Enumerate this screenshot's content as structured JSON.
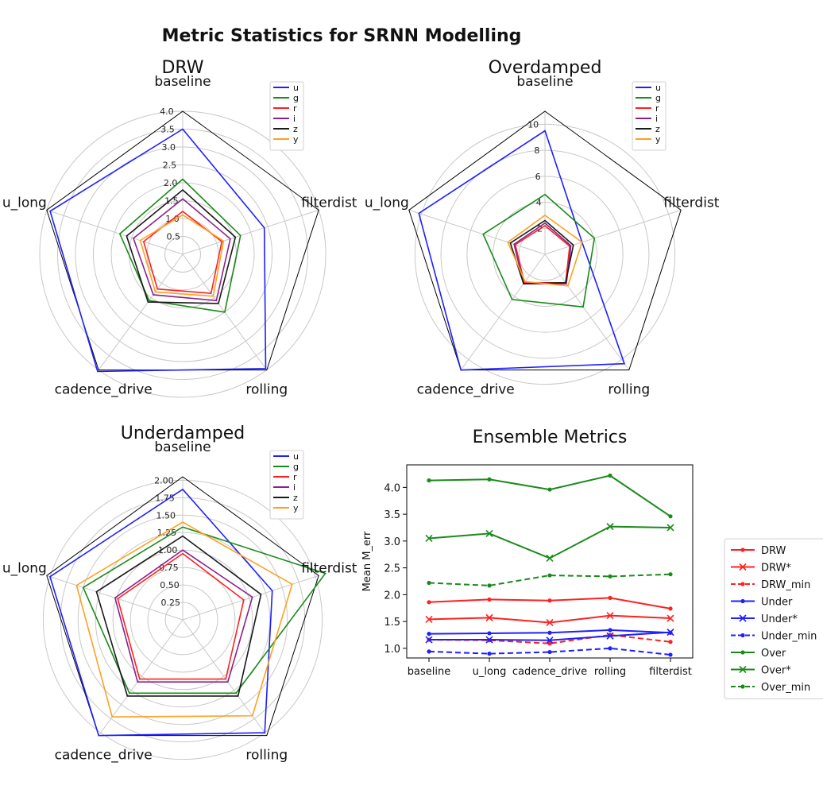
{
  "figure_title": "Metric Statistics for SRNN Modelling",
  "colors": {
    "u": "#1f1fff",
    "g": "#1a8a1a",
    "r": "#ff2020",
    "i": "#8b228b",
    "z": "#1a1a1a",
    "y": "#ffa020",
    "grid": "#c8c8c8",
    "frame": "#000000"
  },
  "chart_data": [
    {
      "type": "radar",
      "title": "DRW",
      "axes": [
        "baseline",
        "filterdist",
        "rolling",
        "cadence_drive",
        "u_long"
      ],
      "rmax": 4.0,
      "rticks": [
        "0.5",
        "1.0",
        "1.5",
        "2.0",
        "2.5",
        "3.0",
        "3.5",
        "4.0"
      ],
      "rtick_values": [
        0.5,
        1.0,
        1.5,
        2.0,
        2.5,
        3.0,
        3.5,
        4.0
      ],
      "legend": [
        "u",
        "g",
        "r",
        "i",
        "z",
        "y"
      ],
      "series": [
        {
          "name": "u",
          "values": [
            3.5,
            2.4,
            3.95,
            4.05,
            3.9
          ]
        },
        {
          "name": "g",
          "values": [
            2.1,
            1.7,
            2.0,
            1.6,
            1.85
          ]
        },
        {
          "name": "r",
          "values": [
            1.2,
            1.15,
            1.35,
            1.2,
            1.15
          ]
        },
        {
          "name": "i",
          "values": [
            1.55,
            1.4,
            1.6,
            1.4,
            1.45
          ]
        },
        {
          "name": "z",
          "values": [
            1.8,
            1.55,
            1.7,
            1.65,
            1.65
          ]
        },
        {
          "name": "y",
          "values": [
            1.1,
            1.2,
            1.45,
            1.3,
            1.25
          ]
        }
      ]
    },
    {
      "type": "radar",
      "title": "Overdamped",
      "axes": [
        "baseline",
        "filterdist",
        "rolling",
        "cadence_drive",
        "u_long"
      ],
      "rmax": 11.0,
      "rticks": [
        "2",
        "4",
        "6",
        "8",
        "10"
      ],
      "rtick_values": [
        2,
        4,
        6,
        8,
        10
      ],
      "legend": [
        "u",
        "g",
        "r",
        "i",
        "z",
        "y"
      ],
      "series": [
        {
          "name": "u",
          "values": [
            9.5,
            3.0,
            10.4,
            11.0,
            10.2
          ]
        },
        {
          "name": "g",
          "values": [
            4.6,
            4.0,
            5.0,
            4.3,
            5.0
          ]
        },
        {
          "name": "r",
          "values": [
            2.2,
            2.0,
            2.7,
            2.7,
            2.4
          ]
        },
        {
          "name": "i",
          "values": [
            2.4,
            2.1,
            2.8,
            2.8,
            2.5
          ]
        },
        {
          "name": "z",
          "values": [
            2.6,
            2.3,
            2.7,
            2.8,
            2.8
          ]
        },
        {
          "name": "y",
          "values": [
            3.0,
            3.0,
            3.0,
            2.6,
            3.0
          ]
        }
      ]
    },
    {
      "type": "radar",
      "title": "Underdamped",
      "axes": [
        "baseline",
        "filterdist",
        "rolling",
        "cadence_drive",
        "u_long"
      ],
      "rmax": 2.05,
      "rticks": [
        "0.25",
        "0.50",
        "0.75",
        "1.00",
        "1.25",
        "1.50",
        "1.75",
        "2.00"
      ],
      "rtick_values": [
        0.25,
        0.5,
        0.75,
        1.0,
        1.25,
        1.5,
        1.75,
        2.0
      ],
      "legend": [
        "u",
        "g",
        "r",
        "i",
        "z",
        "y"
      ],
      "series": [
        {
          "name": "u",
          "values": [
            1.87,
            1.35,
            2.0,
            2.05,
            2.0
          ]
        },
        {
          "name": "g",
          "values": [
            1.33,
            2.15,
            1.3,
            1.3,
            1.5
          ]
        },
        {
          "name": "r",
          "values": [
            0.95,
            0.92,
            1.05,
            1.05,
            0.98
          ]
        },
        {
          "name": "i",
          "values": [
            1.0,
            1.05,
            1.1,
            1.1,
            1.02
          ]
        },
        {
          "name": "z",
          "values": [
            1.2,
            1.18,
            1.35,
            1.35,
            1.3
          ]
        },
        {
          "name": "y",
          "values": [
            1.4,
            1.65,
            1.7,
            1.72,
            1.6
          ]
        }
      ]
    },
    {
      "type": "line",
      "title": "Ensemble Metrics",
      "ylabel": "Mean M_err",
      "categories": [
        "baseline",
        "u_long",
        "cadence_drive",
        "rolling",
        "filterdist"
      ],
      "ylim": [
        0.82,
        4.42
      ],
      "yticks": [
        "1.0",
        "1.5",
        "2.0",
        "2.5",
        "3.0",
        "3.5",
        "4.0"
      ],
      "ytick_values": [
        1.0,
        1.5,
        2.0,
        2.5,
        3.0,
        3.5,
        4.0
      ],
      "series": [
        {
          "name": "DRW",
          "color": "#ff2020",
          "style": "solid",
          "marker": "dot",
          "values": [
            1.86,
            1.91,
            1.89,
            1.94,
            1.74
          ]
        },
        {
          "name": "DRW*",
          "color": "#ff2020",
          "style": "solid",
          "marker": "x",
          "values": [
            1.54,
            1.57,
            1.48,
            1.61,
            1.56
          ]
        },
        {
          "name": "DRW_min",
          "color": "#ff2020",
          "style": "dashed",
          "marker": "dot",
          "values": [
            1.16,
            1.15,
            1.09,
            1.25,
            1.12
          ]
        },
        {
          "name": "Under",
          "color": "#1f1fff",
          "style": "solid",
          "marker": "dot",
          "values": [
            1.27,
            1.28,
            1.29,
            1.34,
            1.29
          ]
        },
        {
          "name": "Under*",
          "color": "#1f1fff",
          "style": "solid",
          "marker": "x",
          "values": [
            1.16,
            1.16,
            1.15,
            1.23,
            1.3
          ]
        },
        {
          "name": "Under_min",
          "color": "#1f1fff",
          "style": "dashed",
          "marker": "dot",
          "values": [
            0.94,
            0.9,
            0.93,
            1.0,
            0.88
          ]
        },
        {
          "name": "Over",
          "color": "#1a8a1a",
          "style": "solid",
          "marker": "dot",
          "values": [
            4.13,
            4.15,
            3.96,
            4.22,
            3.46
          ]
        },
        {
          "name": "Over*",
          "color": "#1a8a1a",
          "style": "solid",
          "marker": "x",
          "values": [
            3.05,
            3.14,
            2.68,
            3.27,
            3.25
          ]
        },
        {
          "name": "Over_min",
          "color": "#1a8a1a",
          "style": "dashed",
          "marker": "dot",
          "values": [
            2.22,
            2.17,
            2.36,
            2.34,
            2.38
          ]
        }
      ]
    }
  ]
}
